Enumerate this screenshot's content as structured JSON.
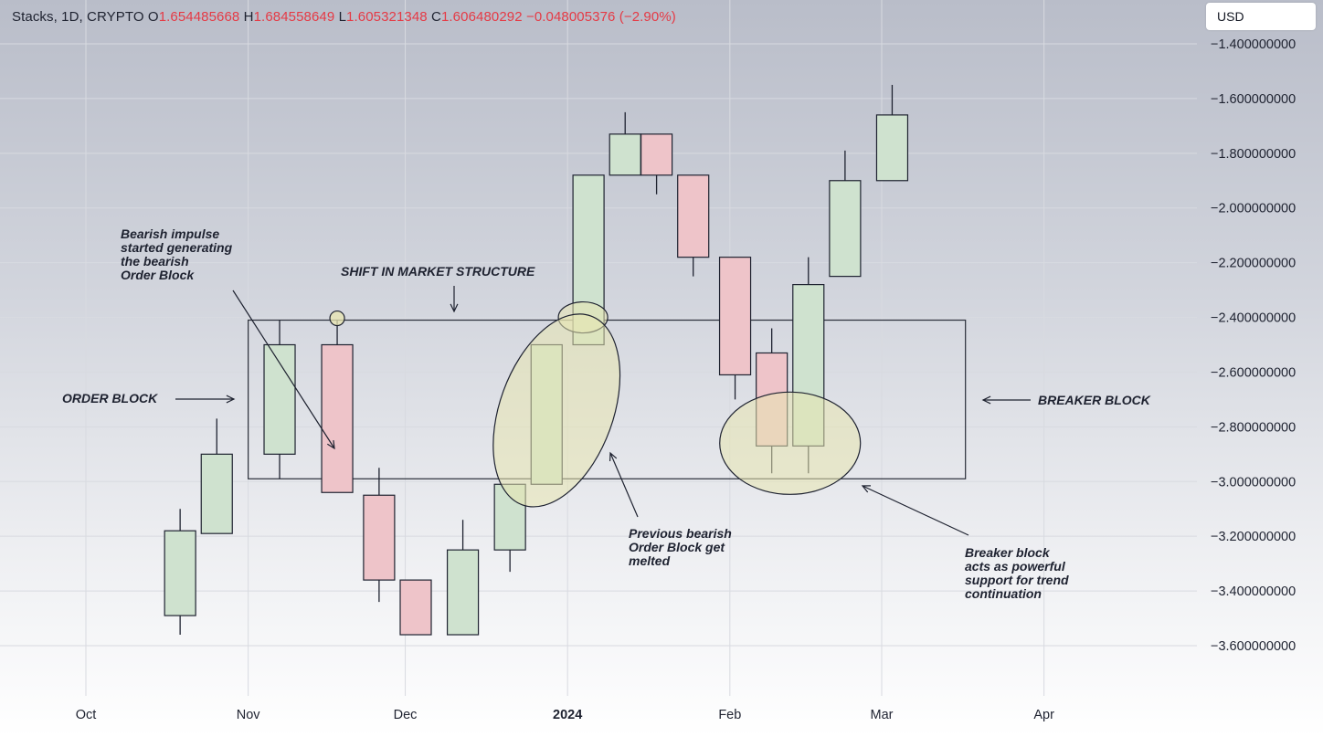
{
  "header": {
    "symbol": "Stacks, 1D, CRYPTO",
    "o_label": "O",
    "o_value": "1.654485668",
    "h_label": "H",
    "h_value": "1.684558649",
    "l_label": "L",
    "l_value": "1.605321348",
    "c_label": "C",
    "c_value": "1.606480292",
    "change": "−0.048005376 (−2.90%)"
  },
  "currency": "USD",
  "annotations": {
    "bearish_impulse": "Bearish impulse\nstarted generating\nthe bearish\nOrder Block",
    "shift": "SHIFT IN MARKET STRUCTURE",
    "order_block": "ORDER BLOCK",
    "breaker_block": "BREAKER BLOCK",
    "melted": "Previous bearish\nOrder Block get\nmelted",
    "support": "Breaker block\nacts as powerful\nsupport for trend\ncontinuation"
  },
  "colors": {
    "bull_fill": "#cfe2cf",
    "bear_fill": "#eec4c9",
    "wick": "#1e2230",
    "highlight": "#e8e6b0",
    "grid": "#d8dae0",
    "text_red": "#e53a45"
  },
  "chart_data": {
    "type": "candlestick",
    "timeframe": "1D",
    "ylim": [
      -3.68,
      -1.32
    ],
    "y_ticks": [
      {
        "value": -1.4,
        "label": "−1.400000000"
      },
      {
        "value": -1.6,
        "label": "−1.600000000"
      },
      {
        "value": -1.8,
        "label": "−1.800000000"
      },
      {
        "value": -2.0,
        "label": "−2.000000000"
      },
      {
        "value": -2.2,
        "label": "−2.200000000"
      },
      {
        "value": -2.4,
        "label": "−2.400000000"
      },
      {
        "value": -2.6,
        "label": "−2.600000000"
      },
      {
        "value": -2.8,
        "label": "−2.800000000"
      },
      {
        "value": -3.0,
        "label": "−3.000000000"
      },
      {
        "value": -3.2,
        "label": "−3.200000000"
      },
      {
        "value": -3.4,
        "label": "−3.400000000"
      },
      {
        "value": -3.6,
        "label": "−3.600000000"
      }
    ],
    "x_ticks": [
      {
        "date": "2023-10-01",
        "label": "Oct",
        "bold": false
      },
      {
        "date": "2023-11-01",
        "label": "Nov",
        "bold": false
      },
      {
        "date": "2023-12-01",
        "label": "Dec",
        "bold": false
      },
      {
        "date": "2024-01-01",
        "label": "2024",
        "bold": true
      },
      {
        "date": "2024-02-01",
        "label": "Feb",
        "bold": false
      },
      {
        "date": "2024-03-01",
        "label": "Mar",
        "bold": false
      },
      {
        "date": "2024-04-01",
        "label": "Apr",
        "bold": false
      }
    ],
    "candles": [
      {
        "date": "2023-10-19",
        "open": -3.49,
        "high": -3.1,
        "low": -3.56,
        "close": -3.18
      },
      {
        "date": "2023-10-26",
        "open": -3.19,
        "high": -2.77,
        "low": -3.19,
        "close": -2.9
      },
      {
        "date": "2023-11-07",
        "open": -2.9,
        "high": -2.41,
        "low": -2.99,
        "close": -2.5
      },
      {
        "date": "2023-11-18",
        "open": -2.5,
        "high": -2.41,
        "low": -3.04,
        "close": -3.04
      },
      {
        "date": "2023-11-26",
        "open": -3.05,
        "high": -2.95,
        "low": -3.44,
        "close": -3.36
      },
      {
        "date": "2023-12-03",
        "open": -3.36,
        "high": -3.36,
        "low": -3.56,
        "close": -3.56
      },
      {
        "date": "2023-12-12",
        "open": -3.56,
        "high": -3.14,
        "low": -3.56,
        "close": -3.25
      },
      {
        "date": "2023-12-21",
        "open": -3.25,
        "high": -3.01,
        "low": -3.33,
        "close": -3.01
      },
      {
        "date": "2023-12-28",
        "open": -3.01,
        "high": -2.5,
        "low": -3.01,
        "close": -2.5
      },
      {
        "date": "2024-01-05",
        "open": -2.5,
        "high": -1.88,
        "low": -2.5,
        "close": -1.88
      },
      {
        "date": "2024-01-12",
        "open": -1.88,
        "high": -1.65,
        "low": -1.88,
        "close": -1.73
      },
      {
        "date": "2024-01-18",
        "open": -1.73,
        "high": -1.73,
        "low": -1.95,
        "close": -1.88
      },
      {
        "date": "2024-01-25",
        "open": -1.88,
        "high": -1.88,
        "low": -2.25,
        "close": -2.18
      },
      {
        "date": "2024-02-02",
        "open": -2.18,
        "high": -2.18,
        "low": -2.7,
        "close": -2.61
      },
      {
        "date": "2024-02-09",
        "open": -2.53,
        "high": -2.44,
        "low": -2.97,
        "close": -2.87
      },
      {
        "date": "2024-02-16",
        "open": -2.87,
        "high": -2.18,
        "low": -2.97,
        "close": -2.28
      },
      {
        "date": "2024-02-23",
        "open": -2.25,
        "high": -1.79,
        "low": -2.25,
        "close": -1.9
      },
      {
        "date": "2024-03-03",
        "open": -1.9,
        "high": -1.55,
        "low": -1.9,
        "close": -1.66
      }
    ],
    "order_block": {
      "from": "2023-11-01",
      "to": "2024-03-17",
      "top": -2.41,
      "bottom": -2.99
    }
  }
}
